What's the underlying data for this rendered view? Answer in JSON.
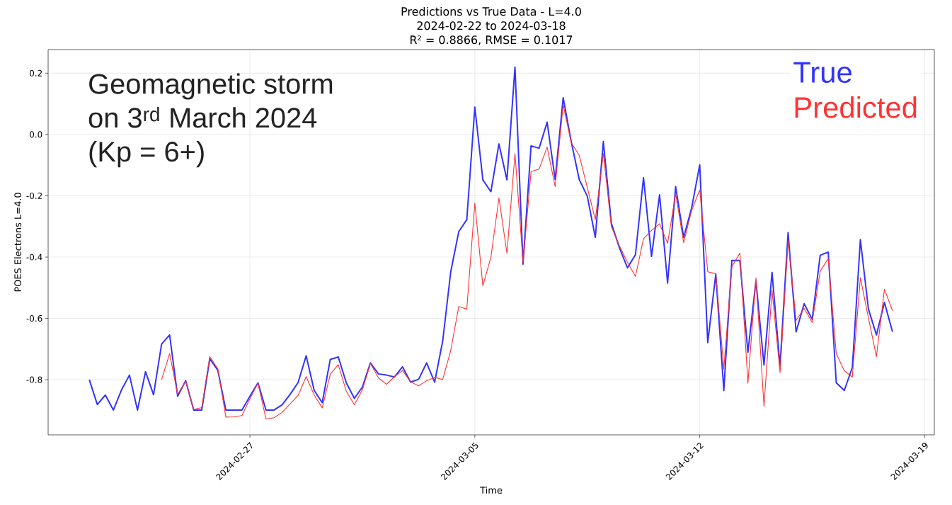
{
  "chart_data": {
    "type": "line",
    "title": "Predictions vs True Data - L=4.0",
    "subtitle": "2024-02-22 to 2024-03-18",
    "xlabel": "Time",
    "ylabel": "POES Electrons L=4.0",
    "annotations": [
      "R² = 0.8866, RMSE = 0.1017",
      "Geomagnetic storm",
      "on 3$^{rd}$ March 2024",
      "(Kp = 6+)"
    ],
    "x": [
      "2024-02-22T00:00",
      "2024-02-22T06:00",
      "2024-02-22T12:00",
      "2024-02-22T18:00",
      "2024-02-23T00:00",
      "2024-02-23T06:00",
      "2024-02-23T12:00",
      "2024-02-23T18:00",
      "2024-02-24T00:00",
      "2024-02-24T06:00",
      "2024-02-24T12:00",
      "2024-02-24T18:00",
      "2024-02-25T00:00",
      "2024-02-25T06:00",
      "2024-02-25T12:00",
      "2024-02-25T18:00",
      "2024-02-26T00:00",
      "2024-02-26T06:00",
      "2024-02-26T12:00",
      "2024-02-26T18:00",
      "2024-02-27T00:00",
      "2024-02-27T06:00",
      "2024-02-27T12:00",
      "2024-02-27T18:00",
      "2024-02-28T00:00",
      "2024-02-28T06:00",
      "2024-02-28T12:00",
      "2024-02-28T18:00",
      "2024-02-29T00:00",
      "2024-02-29T06:00",
      "2024-02-29T12:00",
      "2024-02-29T18:00",
      "2024-03-01T00:00",
      "2024-03-01T06:00",
      "2024-03-01T12:00",
      "2024-03-01T18:00",
      "2024-03-02T00:00",
      "2024-03-02T06:00",
      "2024-03-02T12:00",
      "2024-03-02T18:00",
      "2024-03-03T00:00",
      "2024-03-03T06:00",
      "2024-03-03T12:00",
      "2024-03-03T18:00",
      "2024-03-04T00:00",
      "2024-03-04T06:00",
      "2024-03-04T12:00",
      "2024-03-04T18:00",
      "2024-03-05T00:00",
      "2024-03-05T06:00",
      "2024-03-05T12:00",
      "2024-03-05T18:00",
      "2024-03-06T00:00",
      "2024-03-06T06:00",
      "2024-03-06T12:00",
      "2024-03-06T18:00",
      "2024-03-07T00:00",
      "2024-03-07T06:00",
      "2024-03-07T12:00",
      "2024-03-07T18:00",
      "2024-03-08T00:00",
      "2024-03-08T06:00",
      "2024-03-08T12:00",
      "2024-03-08T18:00",
      "2024-03-09T00:00",
      "2024-03-09T06:00",
      "2024-03-09T12:00",
      "2024-03-09T18:00",
      "2024-03-10T00:00",
      "2024-03-10T06:00",
      "2024-03-10T12:00",
      "2024-03-10T18:00",
      "2024-03-11T00:00",
      "2024-03-11T06:00",
      "2024-03-11T12:00",
      "2024-03-11T18:00",
      "2024-03-12T00:00",
      "2024-03-12T06:00",
      "2024-03-12T12:00",
      "2024-03-12T18:00",
      "2024-03-13T00:00",
      "2024-03-13T06:00",
      "2024-03-13T12:00",
      "2024-03-13T18:00",
      "2024-03-14T00:00",
      "2024-03-14T06:00",
      "2024-03-14T12:00",
      "2024-03-14T18:00",
      "2024-03-15T00:00",
      "2024-03-15T06:00",
      "2024-03-15T12:00",
      "2024-03-15T18:00",
      "2024-03-16T00:00",
      "2024-03-16T06:00",
      "2024-03-16T12:00",
      "2024-03-16T18:00",
      "2024-03-17T00:00",
      "2024-03-17T06:00",
      "2024-03-17T12:00",
      "2024-03-17T18:00",
      "2024-03-18T00:00"
    ],
    "series": [
      {
        "name": "True",
        "color": "#3333ff",
        "values": [
          -0.8,
          -0.881,
          -0.85,
          -0.899,
          -0.834,
          -0.785,
          -0.899,
          -0.774,
          -0.849,
          -0.684,
          -0.654,
          -0.854,
          -0.803,
          -0.899,
          -0.899,
          -0.732,
          -0.769,
          -0.899,
          -0.899,
          -0.899,
          -0.854,
          -0.81,
          -0.899,
          -0.899,
          -0.882,
          -0.848,
          -0.809,
          -0.722,
          -0.835,
          -0.875,
          -0.734,
          -0.726,
          -0.81,
          -0.861,
          -0.824,
          -0.745,
          -0.781,
          -0.785,
          -0.791,
          -0.758,
          -0.808,
          -0.799,
          -0.745,
          -0.808,
          -0.674,
          -0.448,
          -0.317,
          -0.278,
          0.089,
          -0.148,
          -0.187,
          -0.031,
          -0.148,
          0.22,
          -0.423,
          -0.037,
          -0.045,
          0.04,
          -0.147,
          0.12,
          -0.023,
          -0.147,
          -0.201,
          -0.336,
          -0.023,
          -0.29,
          -0.369,
          -0.435,
          -0.392,
          -0.141,
          -0.398,
          -0.197,
          -0.485,
          -0.17,
          -0.336,
          -0.239,
          -0.099,
          -0.679,
          -0.455,
          -0.835,
          -0.411,
          -0.411,
          -0.711,
          -0.478,
          -0.752,
          -0.45,
          -0.756,
          -0.32,
          -0.644,
          -0.552,
          -0.603,
          -0.394,
          -0.384,
          -0.81,
          -0.835,
          -0.76,
          -0.343,
          -0.569,
          -0.654,
          -0.548,
          -0.644
        ]
      },
      {
        "name": "Predicted",
        "color": "#ff3333",
        "x": [
          "2024-02-24T06:00",
          "2024-02-24T12:00",
          "2024-02-24T18:00",
          "2024-02-25T00:00",
          "2024-02-25T06:00",
          "2024-02-25T12:00",
          "2024-02-25T18:00",
          "2024-02-26T00:00",
          "2024-02-26T06:00",
          "2024-02-26T12:00",
          "2024-02-26T18:00",
          "2024-02-27T00:00",
          "2024-02-27T06:00",
          "2024-02-27T12:00",
          "2024-02-27T18:00",
          "2024-02-28T00:00",
          "2024-02-28T06:00",
          "2024-02-28T12:00",
          "2024-02-28T18:00",
          "2024-02-29T00:00",
          "2024-02-29T06:00",
          "2024-02-29T12:00",
          "2024-02-29T18:00",
          "2024-03-01T00:00",
          "2024-03-01T06:00",
          "2024-03-01T12:00",
          "2024-03-01T18:00",
          "2024-03-02T00:00",
          "2024-03-02T06:00",
          "2024-03-02T12:00",
          "2024-03-02T18:00",
          "2024-03-03T00:00",
          "2024-03-03T06:00",
          "2024-03-03T12:00",
          "2024-03-03T18:00",
          "2024-03-04T00:00",
          "2024-03-04T06:00",
          "2024-03-04T12:00",
          "2024-03-04T18:00",
          "2024-03-05T00:00",
          "2024-03-05T06:00",
          "2024-03-05T12:00",
          "2024-03-05T18:00",
          "2024-03-06T00:00",
          "2024-03-06T06:00",
          "2024-03-06T12:00",
          "2024-03-06T18:00",
          "2024-03-07T00:00",
          "2024-03-07T06:00",
          "2024-03-07T12:00",
          "2024-03-07T18:00",
          "2024-03-08T00:00",
          "2024-03-08T06:00",
          "2024-03-08T12:00",
          "2024-03-08T18:00",
          "2024-03-09T00:00",
          "2024-03-09T06:00",
          "2024-03-09T12:00",
          "2024-03-09T18:00",
          "2024-03-10T00:00",
          "2024-03-10T06:00",
          "2024-03-10T12:00",
          "2024-03-10T18:00",
          "2024-03-11T00:00",
          "2024-03-11T06:00",
          "2024-03-11T12:00",
          "2024-03-11T18:00",
          "2024-03-12T00:00",
          "2024-03-12T06:00",
          "2024-03-12T12:00",
          "2024-03-12T18:00",
          "2024-03-13T00:00",
          "2024-03-13T06:00",
          "2024-03-13T12:00",
          "2024-03-13T18:00",
          "2024-03-14T00:00",
          "2024-03-14T06:00",
          "2024-03-14T12:00",
          "2024-03-14T18:00",
          "2024-03-15T00:00",
          "2024-03-15T06:00",
          "2024-03-15T12:00",
          "2024-03-15T18:00",
          "2024-03-16T00:00",
          "2024-03-16T06:00",
          "2024-03-16T12:00",
          "2024-03-16T18:00",
          "2024-03-17T00:00",
          "2024-03-17T06:00",
          "2024-03-17T12:00",
          "2024-03-17T18:00",
          "2024-03-18T00:00"
        ],
        "values": [
          -0.8,
          -0.715,
          -0.848,
          -0.805,
          -0.897,
          -0.891,
          -0.725,
          -0.764,
          -0.922,
          -0.921,
          -0.917,
          -0.862,
          -0.811,
          -0.928,
          -0.924,
          -0.907,
          -0.879,
          -0.851,
          -0.79,
          -0.85,
          -0.892,
          -0.782,
          -0.751,
          -0.838,
          -0.882,
          -0.833,
          -0.747,
          -0.794,
          -0.815,
          -0.79,
          -0.77,
          -0.807,
          -0.82,
          -0.803,
          -0.793,
          -0.799,
          -0.705,
          -0.561,
          -0.57,
          -0.224,
          -0.494,
          -0.401,
          -0.207,
          -0.388,
          -0.062,
          -0.417,
          -0.121,
          -0.113,
          -0.041,
          -0.17,
          0.097,
          -0.027,
          -0.068,
          -0.173,
          -0.278,
          -0.062,
          -0.301,
          -0.363,
          -0.417,
          -0.463,
          -0.34,
          -0.313,
          -0.291,
          -0.355,
          -0.193,
          -0.353,
          -0.247,
          -0.181,
          -0.448,
          -0.454,
          -0.765,
          -0.432,
          -0.387,
          -0.811,
          -0.468,
          -0.887,
          -0.508,
          -0.777,
          -0.346,
          -0.607,
          -0.567,
          -0.613,
          -0.446,
          -0.405,
          -0.715,
          -0.771,
          -0.791,
          -0.467,
          -0.598,
          -0.725,
          -0.505,
          -0.575
        ]
      }
    ],
    "xlim": [
      "2024-02-20T17:15",
      "2024-03-19T07:15"
    ],
    "xticks": [
      "2024-02-27",
      "2024-03-05",
      "2024-03-12",
      "2024-03-19"
    ],
    "ylim": [
      -0.98,
      0.277
    ],
    "yticks": [
      -0.8,
      -0.6,
      -0.4,
      -0.2,
      {
        "value": 0,
        "label": "0.0"
      },
      0.2
    ],
    "grid": true,
    "legend": "top right",
    "marker": "none",
    "line_style": "solid"
  }
}
